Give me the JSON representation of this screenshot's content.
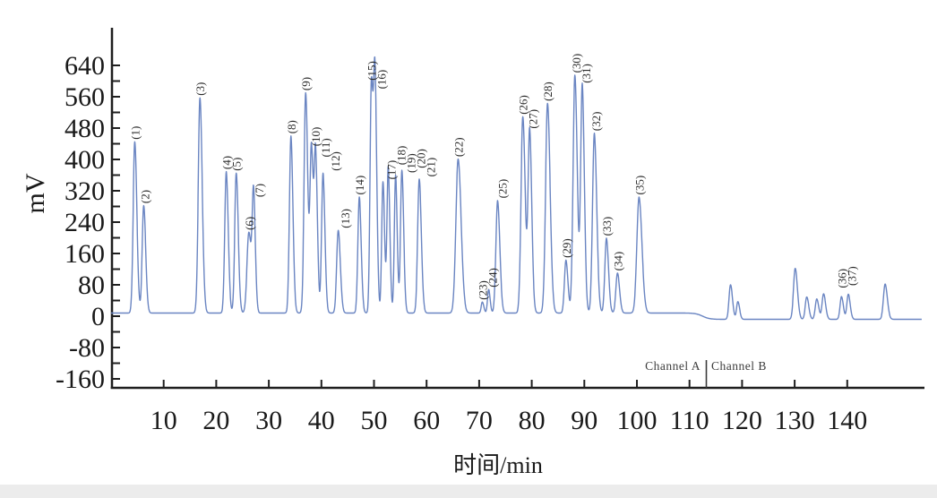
{
  "figure": {
    "background": "#ffffff",
    "trace_color": "#6a85c2",
    "axis_color": "#1f1f1f",
    "tick_label_color": "#1a1a1a",
    "peak_label_color": "#2b2b2b"
  },
  "y_axis": {
    "unit_label": "mV",
    "tick_labels": [
      640,
      560,
      480,
      400,
      320,
      240,
      160,
      80,
      0,
      -80,
      -160
    ],
    "minor_tick_step_mv": 40
  },
  "x_axis": {
    "title": "时间/min",
    "tick_labels": [
      10,
      20,
      30,
      40,
      50,
      60,
      70,
      80,
      90,
      100,
      110,
      120,
      130,
      140
    ]
  },
  "channels": {
    "a_label": "Channel A",
    "b_label": "Channel B",
    "divider_time_min": 113.2
  },
  "chart_data": {
    "type": "line",
    "title": "",
    "xlabel": "时间/min",
    "ylabel": "mV",
    "xlim": [
      0,
      154
    ],
    "ylim": [
      -160,
      730
    ],
    "grid": false,
    "baseline_mv_channel_a": 8,
    "baseline_mv_channel_b": -8,
    "peaks": [
      {
        "label": "(1)",
        "t_min": 4.5,
        "mv": 437,
        "w": 0.42
      },
      {
        "label": "(2)",
        "t_min": 6.2,
        "mv": 274,
        "w": 0.4
      },
      {
        "label": "(3)",
        "t_min": 16.9,
        "mv": 549,
        "w": 0.45
      },
      {
        "label": "(4)",
        "t_min": 21.9,
        "mv": 361,
        "w": 0.4
      },
      {
        "label": "(5)",
        "t_min": 23.8,
        "mv": 357,
        "w": 0.4
      },
      {
        "label": "(6)",
        "t_min": 26.2,
        "mv": 206,
        "w": 0.5
      },
      {
        "label": "(7)",
        "t_min": 27.1,
        "mv": 290,
        "w": 0.35
      },
      {
        "label": "(8)",
        "t_min": 34.2,
        "mv": 452,
        "w": 0.4
      },
      {
        "label": "(9)",
        "t_min": 37.0,
        "mv": 562,
        "w": 0.42
      },
      {
        "label": "(10)",
        "t_min": 38.1,
        "mv": 420,
        "w": 0.38
      },
      {
        "label": "(11)",
        "t_min": 38.9,
        "mv": 392,
        "w": 0.36
      },
      {
        "label": "(12)",
        "t_min": 40.3,
        "mv": 357,
        "w": 0.38
      },
      {
        "label": "(13)",
        "t_min": 43.2,
        "mv": 211,
        "w": 0.42
      },
      {
        "label": "(14)",
        "t_min": 47.2,
        "mv": 296,
        "w": 0.38
      },
      {
        "label": "(15)",
        "t_min": 49.5,
        "mv": 588,
        "w": 0.36
      },
      {
        "label": "(16)",
        "t_min": 50.2,
        "mv": 566,
        "w": 0.36
      },
      {
        "label": "(17)",
        "t_min": 51.7,
        "mv": 335,
        "w": 0.33
      },
      {
        "label": "(18)",
        "t_min": 52.7,
        "mv": 372,
        "w": 0.33
      },
      {
        "label": "(19)",
        "t_min": 54.1,
        "mv": 352,
        "w": 0.33
      },
      {
        "label": "(20)",
        "t_min": 55.3,
        "mv": 364,
        "w": 0.36
      },
      {
        "label": "(21)",
        "t_min": 58.6,
        "mv": 342,
        "w": 0.42
      },
      {
        "label": "(22)",
        "t_min": 66.0,
        "mv": 393,
        "w": 0.6
      },
      {
        "label": "(23)",
        "t_min": 70.6,
        "mv": 28,
        "w": 0.3
      },
      {
        "label": "(24)",
        "t_min": 71.8,
        "mv": 60,
        "w": 0.3
      },
      {
        "label": "(25)",
        "t_min": 73.5,
        "mv": 287,
        "w": 0.45
      },
      {
        "label": "(26)",
        "t_min": 78.3,
        "mv": 501,
        "w": 0.48
      },
      {
        "label": "(27)",
        "t_min": 79.6,
        "mv": 465,
        "w": 0.42
      },
      {
        "label": "(28)",
        "t_min": 83.0,
        "mv": 535,
        "w": 0.52
      },
      {
        "label": "(29)",
        "t_min": 86.5,
        "mv": 135,
        "w": 0.4
      },
      {
        "label": "(30)",
        "t_min": 88.2,
        "mv": 607,
        "w": 0.48
      },
      {
        "label": "(31)",
        "t_min": 89.6,
        "mv": 581,
        "w": 0.42
      },
      {
        "label": "(32)",
        "t_min": 91.9,
        "mv": 459,
        "w": 0.48
      },
      {
        "label": "(33)",
        "t_min": 94.2,
        "mv": 191,
        "w": 0.42
      },
      {
        "label": "(34)",
        "t_min": 96.3,
        "mv": 102,
        "w": 0.42
      },
      {
        "label": "(35)",
        "t_min": 100.4,
        "mv": 296,
        "w": 0.58
      },
      {
        "label": "",
        "t_min": 117.8,
        "mv": 88,
        "w": 0.4
      },
      {
        "label": "",
        "t_min": 119.2,
        "mv": 45,
        "w": 0.35
      },
      {
        "label": "",
        "t_min": 130.1,
        "mv": 130,
        "w": 0.45
      },
      {
        "label": "",
        "t_min": 132.3,
        "mv": 57,
        "w": 0.4
      },
      {
        "label": "",
        "t_min": 134.2,
        "mv": 52,
        "w": 0.4
      },
      {
        "label": "",
        "t_min": 135.5,
        "mv": 65,
        "w": 0.4
      },
      {
        "label": "(36)",
        "t_min": 138.9,
        "mv": 58,
        "w": 0.38
      },
      {
        "label": "(37)",
        "t_min": 140.2,
        "mv": 64,
        "w": 0.38
      },
      {
        "label": "",
        "t_min": 147.2,
        "mv": 90,
        "w": 0.45
      }
    ]
  }
}
